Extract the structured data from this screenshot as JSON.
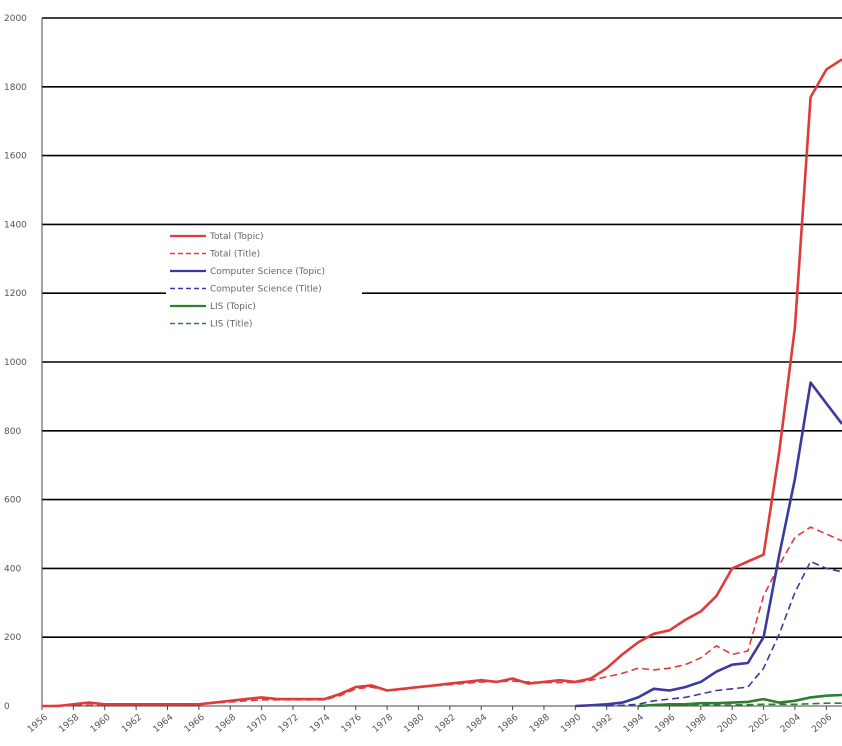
{
  "chart_data": {
    "type": "line",
    "title": "",
    "xlabel": "",
    "ylabel": "",
    "ylim": [
      0,
      2000
    ],
    "xlim": [
      1956,
      2007
    ],
    "grid": true,
    "legend_position": "center-left",
    "y_ticks": [
      0,
      200,
      400,
      600,
      800,
      1000,
      1200,
      1400,
      1600,
      1800,
      2000
    ],
    "x_ticks": [
      1956,
      1958,
      1960,
      1962,
      1964,
      1966,
      1968,
      1970,
      1972,
      1974,
      1976,
      1978,
      1980,
      1982,
      1984,
      1986,
      1988,
      1990,
      1992,
      1994,
      1996,
      1998,
      2000,
      2002,
      2004,
      2006
    ],
    "series": [
      {
        "name": "Total (Topic)",
        "color": "#e03a3a",
        "dash": "solid",
        "x": [
          1956,
          1957,
          1958,
          1959,
          1960,
          1962,
          1964,
          1966,
          1968,
          1969,
          1970,
          1971,
          1972,
          1973,
          1974,
          1975,
          1976,
          1977,
          1978,
          1979,
          1980,
          1981,
          1982,
          1983,
          1984,
          1985,
          1986,
          1987,
          1988,
          1989,
          1990,
          1991,
          1992,
          1993,
          1994,
          1995,
          1996,
          1997,
          1998,
          1999,
          2000,
          2001,
          2002,
          2003,
          2004,
          2005,
          2006,
          2007
        ],
        "values": [
          0,
          0,
          5,
          10,
          5,
          5,
          5,
          5,
          15,
          20,
          25,
          20,
          20,
          20,
          20,
          35,
          55,
          60,
          45,
          50,
          55,
          60,
          65,
          70,
          75,
          70,
          80,
          65,
          70,
          75,
          70,
          80,
          110,
          150,
          185,
          210,
          220,
          250,
          275,
          320,
          400,
          420,
          440,
          740,
          1100,
          1770,
          1850,
          1880
        ]
      },
      {
        "name": "Total (Title)",
        "color": "#e03a3a",
        "dash": "dashed",
        "x": [
          1956,
          1958,
          1960,
          1962,
          1964,
          1966,
          1968,
          1970,
          1972,
          1974,
          1975,
          1976,
          1977,
          1978,
          1979,
          1980,
          1982,
          1984,
          1986,
          1988,
          1990,
          1991,
          1992,
          1993,
          1994,
          1995,
          1996,
          1997,
          1998,
          1999,
          2000,
          2001,
          2002,
          2003,
          2004,
          2005,
          2006,
          2007
        ],
        "values": [
          0,
          3,
          3,
          3,
          3,
          5,
          12,
          18,
          18,
          18,
          30,
          50,
          55,
          45,
          48,
          55,
          62,
          70,
          72,
          68,
          68,
          75,
          85,
          95,
          110,
          105,
          110,
          120,
          140,
          175,
          150,
          160,
          320,
          410,
          490,
          520,
          500,
          480
        ]
      },
      {
        "name": "Computer Science (Topic)",
        "color": "#3a3aa0",
        "dash": "solid",
        "x": [
          1990,
          1991,
          1992,
          1993,
          1994,
          1995,
          1996,
          1997,
          1998,
          1999,
          2000,
          2001,
          2002,
          2003,
          2004,
          2005,
          2006,
          2007
        ],
        "values": [
          0,
          2,
          5,
          10,
          25,
          50,
          45,
          55,
          70,
          100,
          120,
          125,
          200,
          440,
          660,
          940,
          880,
          820
        ]
      },
      {
        "name": "Computer Science (Title)",
        "color": "#3a3aa0",
        "dash": "dashed",
        "x": [
          1992,
          1993,
          1994,
          1995,
          1996,
          1997,
          1998,
          1999,
          2000,
          2001,
          2002,
          2003,
          2004,
          2005,
          2006,
          2007
        ],
        "values": [
          0,
          2,
          5,
          15,
          20,
          25,
          35,
          45,
          50,
          55,
          110,
          210,
          330,
          420,
          400,
          390
        ]
      },
      {
        "name": "LIS (Topic)",
        "color": "#2e7d32",
        "dash": "solid",
        "x": [
          1994,
          1995,
          1996,
          1997,
          1998,
          1999,
          2000,
          2001,
          2002,
          2003,
          2004,
          2005,
          2006,
          2007
        ],
        "values": [
          0,
          3,
          5,
          5,
          8,
          8,
          10,
          12,
          20,
          10,
          15,
          25,
          30,
          32
        ]
      },
      {
        "name": "LIS (Title)",
        "color": "#2e7d32",
        "dash": "dashed",
        "x": [
          1996,
          1998,
          2000,
          2002,
          2004,
          2006,
          2007
        ],
        "values": [
          2,
          3,
          3,
          5,
          5,
          8,
          8
        ]
      }
    ]
  }
}
